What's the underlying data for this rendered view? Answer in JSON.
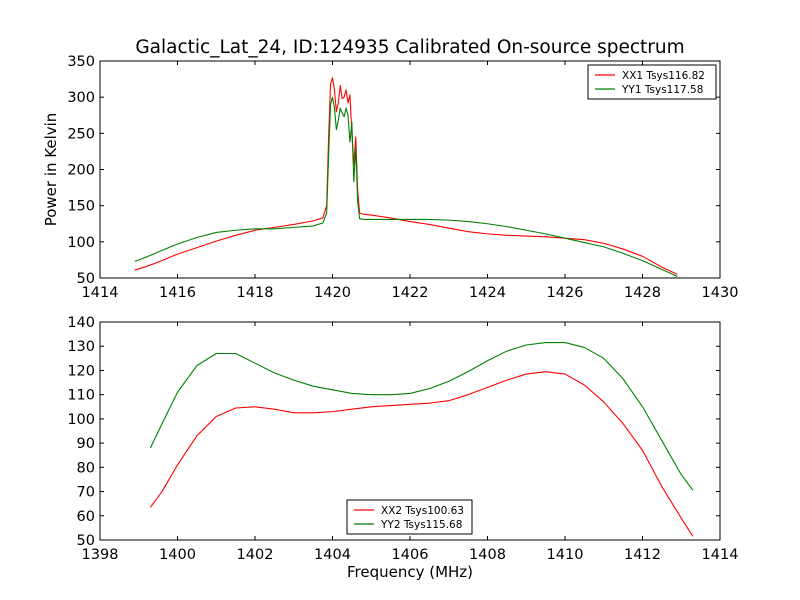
{
  "figure": {
    "title": "Galactic_Lat_24, ID:124935 Calibrated On-source spectrum"
  },
  "chart_data": [
    {
      "type": "line",
      "title": "Galactic_Lat_24, ID:124935 Calibrated On-source spectrum",
      "xlabel": "",
      "ylabel": "Power in Kelvin",
      "xlim": [
        1414,
        1430
      ],
      "ylim": [
        50,
        350
      ],
      "xticks": [
        1414,
        1416,
        1418,
        1420,
        1422,
        1424,
        1426,
        1428,
        1430
      ],
      "yticks": [
        50,
        100,
        150,
        200,
        250,
        300,
        350
      ],
      "legend_position": "top-right",
      "series": [
        {
          "name": "XX1 Tsys116.82",
          "color": "#ff0000",
          "points": [
            [
              1414.9,
              61
            ],
            [
              1415.2,
              66
            ],
            [
              1415.5,
              72
            ],
            [
              1416.0,
              83
            ],
            [
              1416.5,
              92
            ],
            [
              1417.0,
              101
            ],
            [
              1417.5,
              109
            ],
            [
              1418.0,
              116
            ],
            [
              1418.5,
              120
            ],
            [
              1419.0,
              124
            ],
            [
              1419.5,
              129
            ],
            [
              1419.75,
              133
            ],
            [
              1419.85,
              150
            ],
            [
              1419.9,
              245
            ],
            [
              1419.95,
              318
            ],
            [
              1420.0,
              327
            ],
            [
              1420.05,
              310
            ],
            [
              1420.1,
              280
            ],
            [
              1420.15,
              292
            ],
            [
              1420.2,
              316
            ],
            [
              1420.25,
              298
            ],
            [
              1420.3,
              300
            ],
            [
              1420.35,
              310
            ],
            [
              1420.4,
              292
            ],
            [
              1420.45,
              303
            ],
            [
              1420.5,
              250
            ],
            [
              1420.55,
              207
            ],
            [
              1420.6,
              245
            ],
            [
              1420.65,
              170
            ],
            [
              1420.7,
              140
            ],
            [
              1420.8,
              138
            ],
            [
              1421.0,
              137
            ],
            [
              1421.5,
              133
            ],
            [
              1422.0,
              128
            ],
            [
              1422.5,
              124
            ],
            [
              1423.0,
              119
            ],
            [
              1423.5,
              114
            ],
            [
              1424.0,
              111
            ],
            [
              1424.5,
              109
            ],
            [
              1425.0,
              108
            ],
            [
              1425.5,
              107
            ],
            [
              1426.0,
              105
            ],
            [
              1426.5,
              103
            ],
            [
              1427.0,
              98
            ],
            [
              1427.5,
              90
            ],
            [
              1428.0,
              80
            ],
            [
              1428.5,
              65
            ],
            [
              1428.9,
              55
            ]
          ]
        },
        {
          "name": "YY1 Tsys117.58",
          "color": "#008000",
          "points": [
            [
              1414.9,
              73
            ],
            [
              1415.2,
              79
            ],
            [
              1415.5,
              86
            ],
            [
              1416.0,
              97
            ],
            [
              1416.5,
              106
            ],
            [
              1417.0,
              113
            ],
            [
              1417.5,
              116
            ],
            [
              1418.0,
              118
            ],
            [
              1418.5,
              118
            ],
            [
              1419.0,
              120
            ],
            [
              1419.5,
              122
            ],
            [
              1419.75,
              126
            ],
            [
              1419.85,
              140
            ],
            [
              1419.9,
              220
            ],
            [
              1419.95,
              290
            ],
            [
              1420.0,
              300
            ],
            [
              1420.05,
              285
            ],
            [
              1420.1,
              255
            ],
            [
              1420.15,
              268
            ],
            [
              1420.2,
              285
            ],
            [
              1420.25,
              278
            ],
            [
              1420.3,
              273
            ],
            [
              1420.35,
              285
            ],
            [
              1420.4,
              275
            ],
            [
              1420.45,
              238
            ],
            [
              1420.5,
              265
            ],
            [
              1420.55,
              183
            ],
            [
              1420.6,
              230
            ],
            [
              1420.65,
              155
            ],
            [
              1420.7,
              132
            ],
            [
              1420.8,
              131
            ],
            [
              1421.0,
              131
            ],
            [
              1421.5,
              131
            ],
            [
              1422.0,
              131
            ],
            [
              1422.5,
              131
            ],
            [
              1423.0,
              130
            ],
            [
              1423.5,
              128
            ],
            [
              1424.0,
              125
            ],
            [
              1424.5,
              121
            ],
            [
              1425.0,
              116
            ],
            [
              1425.5,
              111
            ],
            [
              1426.0,
              105
            ],
            [
              1426.5,
              99
            ],
            [
              1427.0,
              93
            ],
            [
              1427.5,
              84
            ],
            [
              1428.0,
              74
            ],
            [
              1428.5,
              62
            ],
            [
              1428.9,
              52
            ]
          ]
        }
      ]
    },
    {
      "type": "line",
      "title": "",
      "xlabel": "Frequency (MHz)",
      "ylabel": "",
      "xlim": [
        1398,
        1414
      ],
      "ylim": [
        50,
        140
      ],
      "xticks": [
        1398,
        1400,
        1402,
        1404,
        1406,
        1408,
        1410,
        1412,
        1414
      ],
      "yticks": [
        50,
        60,
        70,
        80,
        90,
        100,
        110,
        120,
        130,
        140
      ],
      "legend_position": "lower-center",
      "series": [
        {
          "name": "XX2 Tsys100.63",
          "color": "#ff0000",
          "points": [
            [
              1399.3,
              63.5
            ],
            [
              1399.6,
              70
            ],
            [
              1400.0,
              81
            ],
            [
              1400.5,
              93
            ],
            [
              1401.0,
              101
            ],
            [
              1401.5,
              104.5
            ],
            [
              1402.0,
              105
            ],
            [
              1402.5,
              104
            ],
            [
              1403.0,
              102.5
            ],
            [
              1403.5,
              102.5
            ],
            [
              1404.0,
              103
            ],
            [
              1404.5,
              104
            ],
            [
              1405.0,
              105
            ],
            [
              1405.5,
              105.5
            ],
            [
              1406.0,
              106
            ],
            [
              1406.5,
              106.5
            ],
            [
              1407.0,
              107.5
            ],
            [
              1407.5,
              110
            ],
            [
              1408.0,
              113
            ],
            [
              1408.5,
              116
            ],
            [
              1409.0,
              118.5
            ],
            [
              1409.5,
              119.5
            ],
            [
              1410.0,
              118.5
            ],
            [
              1410.5,
              114
            ],
            [
              1411.0,
              107
            ],
            [
              1411.5,
              98
            ],
            [
              1412.0,
              87
            ],
            [
              1412.5,
              72
            ],
            [
              1413.0,
              59
            ],
            [
              1413.3,
              51.5
            ]
          ]
        },
        {
          "name": "YY2 Tsys115.68",
          "color": "#008000",
          "points": [
            [
              1399.3,
              88
            ],
            [
              1399.6,
              98
            ],
            [
              1400.0,
              111
            ],
            [
              1400.5,
              122
            ],
            [
              1401.0,
              127
            ],
            [
              1401.5,
              127
            ],
            [
              1402.0,
              123
            ],
            [
              1402.5,
              119
            ],
            [
              1403.0,
              116
            ],
            [
              1403.5,
              113.5
            ],
            [
              1404.0,
              112
            ],
            [
              1404.5,
              110.5
            ],
            [
              1405.0,
              110
            ],
            [
              1405.5,
              110
            ],
            [
              1406.0,
              110.5
            ],
            [
              1406.5,
              112.5
            ],
            [
              1407.0,
              115.5
            ],
            [
              1407.5,
              119.5
            ],
            [
              1408.0,
              124
            ],
            [
              1408.5,
              128
            ],
            [
              1409.0,
              130.5
            ],
            [
              1409.5,
              131.5
            ],
            [
              1410.0,
              131.5
            ],
            [
              1410.5,
              129.5
            ],
            [
              1411.0,
              125
            ],
            [
              1411.5,
              116.5
            ],
            [
              1412.0,
              105
            ],
            [
              1412.5,
              91
            ],
            [
              1413.0,
              77
            ],
            [
              1413.3,
              70.5
            ]
          ]
        }
      ]
    }
  ]
}
